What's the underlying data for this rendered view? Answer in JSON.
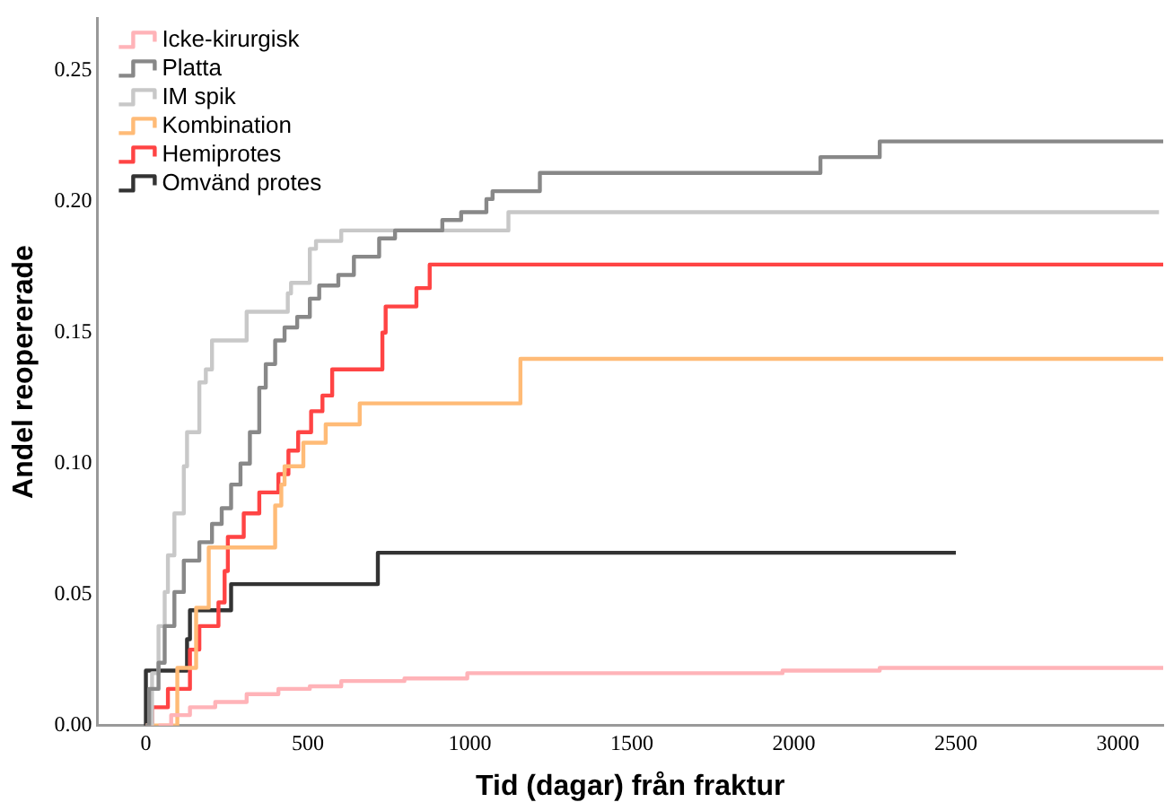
{
  "chart_data": {
    "type": "step",
    "xlabel": "Tid (dagar) från fraktur",
    "ylabel": "Andel reopererade",
    "xlim": [
      -150,
      3140
    ],
    "xticks": [
      0,
      500,
      1000,
      1500,
      2000,
      2500,
      3000
    ],
    "ylim": [
      0,
      0.27
    ],
    "yticks": [
      {
        "value": 0,
        "label": "0.00"
      },
      {
        "value": 0.05,
        "label": "0.05"
      },
      {
        "value": 0.1,
        "label": "0.10"
      },
      {
        "value": 0.15,
        "label": "0.15"
      },
      {
        "value": 0.2,
        "label": "0.20"
      },
      {
        "value": 0.25,
        "label": "0.25"
      }
    ],
    "grid": false,
    "legend": "top left",
    "marker": "none",
    "line_style": "solid",
    "series": [
      {
        "name": "Icke-kirurgisk",
        "color": "#ffb3b8",
        "x": [
          39,
          78,
          136,
          214,
          311,
          409,
          506,
          603,
          798,
          992,
          1965,
          2265,
          3140
        ],
        "values": [
          0,
          0.004,
          0.007,
          0.009,
          0.012,
          0.014,
          0.015,
          0.017,
          0.018,
          0.02,
          0.021,
          0.022,
          0.022
        ]
      },
      {
        "name": "Platta",
        "color": "#888888",
        "x": [
          0,
          10,
          39,
          58,
          88,
          117,
          165,
          204,
          234,
          263,
          292,
          321,
          350,
          370,
          399,
          428,
          467,
          506,
          535,
          594,
          642,
          720,
          769,
          915,
          973,
          1051,
          1070,
          1216,
          2082,
          2265,
          3140
        ],
        "values": [
          0,
          0.014,
          0.024,
          0.038,
          0.051,
          0.063,
          0.07,
          0.077,
          0.083,
          0.092,
          0.1,
          0.112,
          0.129,
          0.138,
          0.147,
          0.152,
          0.156,
          0.163,
          0.168,
          0.172,
          0.179,
          0.186,
          0.189,
          0.193,
          0.196,
          0.201,
          0.204,
          0.211,
          0.217,
          0.223,
          0.223
        ]
      },
      {
        "name": "IM spik",
        "color": "#c8c8c8",
        "x": [
          0,
          19,
          39,
          58,
          68,
          88,
          117,
          127,
          165,
          185,
          204,
          311,
          438,
          448,
          506,
          525,
          603,
          1119,
          3127
        ],
        "values": [
          0,
          0.02,
          0.038,
          0.051,
          0.065,
          0.081,
          0.099,
          0.112,
          0.131,
          0.136,
          0.147,
          0.158,
          0.165,
          0.169,
          0.182,
          0.185,
          0.189,
          0.196,
          0.196
        ]
      },
      {
        "name": "Kombination",
        "color": "#ffbb77",
        "x": [
          0,
          97,
          155,
          194,
          399,
          418,
          428,
          486,
          555,
          660,
          1156,
          3140
        ],
        "values": [
          0,
          0.022,
          0.045,
          0.068,
          0.084,
          0.092,
          0.099,
          0.108,
          0.115,
          0.123,
          0.14,
          0.14
        ]
      },
      {
        "name": "Hemiprotes",
        "color": "#ff4444",
        "x": [
          0,
          19,
          68,
          136,
          165,
          224,
          243,
          253,
          302,
          350,
          409,
          440,
          470,
          510,
          545,
          575,
          730,
          740,
          835,
          876,
          3140
        ],
        "values": [
          0,
          0.007,
          0.014,
          0.029,
          0.038,
          0.047,
          0.059,
          0.072,
          0.081,
          0.089,
          0.096,
          0.105,
          0.112,
          0.12,
          0.126,
          0.136,
          0.15,
          0.16,
          0.167,
          0.176,
          0.176
        ]
      },
      {
        "name": "Omvänd protes",
        "color": "#333333",
        "x": [
          0,
          0,
          127,
          136,
          263,
          716,
          2500
        ],
        "values": [
          0,
          0.021,
          0.033,
          0.044,
          0.054,
          0.066,
          0.066
        ]
      }
    ]
  }
}
